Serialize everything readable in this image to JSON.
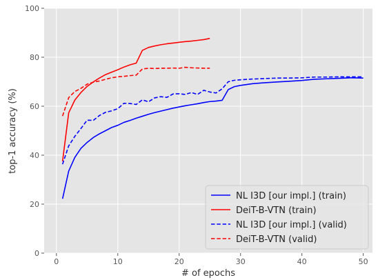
{
  "chart_data": {
    "type": "line",
    "title": "",
    "xlabel": "# of epochs",
    "ylabel": "top-1 accuracy (%)",
    "xlim": [
      -2,
      51.5
    ],
    "ylim": [
      0,
      100
    ],
    "xticks": [
      0,
      10,
      20,
      30,
      40,
      50
    ],
    "yticks": [
      0,
      20,
      40,
      60,
      80,
      100
    ],
    "grid": true,
    "background": "#e5e5e5",
    "legend_position": "lower-right",
    "series": [
      {
        "name": "NL I3D [our impl.] (train)",
        "color": "#0000ff",
        "dash": "solid",
        "x": [
          1,
          2,
          3,
          4,
          5,
          6,
          7,
          8,
          9,
          10,
          11,
          12,
          13,
          14,
          15,
          16,
          17,
          18,
          19,
          20,
          21,
          22,
          23,
          24,
          25,
          26,
          27,
          28,
          29,
          30,
          32,
          34,
          36,
          38,
          40,
          42,
          44,
          46,
          48,
          50
        ],
        "y": [
          22.2,
          33.5,
          39.1,
          42.8,
          45.2,
          47.2,
          48.7,
          50.0,
          51.3,
          52.2,
          53.4,
          54.2,
          55.1,
          55.9,
          56.7,
          57.4,
          58.0,
          58.6,
          59.2,
          59.7,
          60.2,
          60.6,
          61.0,
          61.5,
          61.9,
          62.1,
          62.4,
          66.8,
          68.0,
          68.5,
          69.2,
          69.6,
          69.9,
          70.2,
          70.5,
          71.0,
          71.2,
          71.4,
          71.6,
          71.5
        ]
      },
      {
        "name": "DeiT-B-VTN (train)",
        "color": "#ff0000",
        "dash": "solid",
        "x": [
          1,
          2,
          3,
          4,
          5,
          6,
          7,
          8,
          9,
          10,
          11,
          12,
          13,
          14,
          15,
          16,
          17,
          18,
          19,
          20,
          21,
          22,
          23,
          24,
          25
        ],
        "y": [
          37.5,
          57.3,
          62.5,
          65.6,
          68.1,
          69.9,
          71.5,
          72.9,
          73.9,
          74.9,
          76.0,
          76.9,
          77.6,
          82.8,
          84.0,
          84.6,
          85.1,
          85.5,
          85.8,
          86.1,
          86.4,
          86.6,
          86.9,
          87.2,
          87.7
        ]
      },
      {
        "name": "NL I3D [our impl.] (valid)",
        "color": "#0000ff",
        "dash": "dashed",
        "x": [
          1,
          2,
          3,
          4,
          5,
          6,
          7,
          8,
          9,
          10,
          11,
          12,
          13,
          14,
          15,
          16,
          17,
          18,
          19,
          20,
          21,
          22,
          23,
          24,
          25,
          26,
          27,
          28,
          29,
          30,
          32,
          34,
          36,
          38,
          40,
          42,
          44,
          46,
          48,
          50
        ],
        "y": [
          36.3,
          43.8,
          47.7,
          50.9,
          54.3,
          54.2,
          56.2,
          57.5,
          58.1,
          59.0,
          61.2,
          61.1,
          60.7,
          62.6,
          61.8,
          63.4,
          63.9,
          63.6,
          65.0,
          65.1,
          64.8,
          65.6,
          64.8,
          66.5,
          65.8,
          65.4,
          67.1,
          70.0,
          70.6,
          70.8,
          71.1,
          71.3,
          71.5,
          71.5,
          71.6,
          71.9,
          71.9,
          72.0,
          72.0,
          72.0
        ]
      },
      {
        "name": "DeiT-B-VTN (valid)",
        "color": "#ff0000",
        "dash": "dashed",
        "x": [
          1,
          2,
          3,
          4,
          5,
          6,
          7,
          8,
          9,
          10,
          11,
          12,
          13,
          14,
          15,
          16,
          17,
          18,
          19,
          20,
          21,
          22,
          23,
          24,
          25
        ],
        "y": [
          56.0,
          63.5,
          66.0,
          67.3,
          69.0,
          69.8,
          70.3,
          71.0,
          71.6,
          72.0,
          72.2,
          72.5,
          72.7,
          75.2,
          75.5,
          75.4,
          75.5,
          75.5,
          75.6,
          75.5,
          75.9,
          75.7,
          75.6,
          75.5,
          75.5
        ]
      }
    ]
  }
}
